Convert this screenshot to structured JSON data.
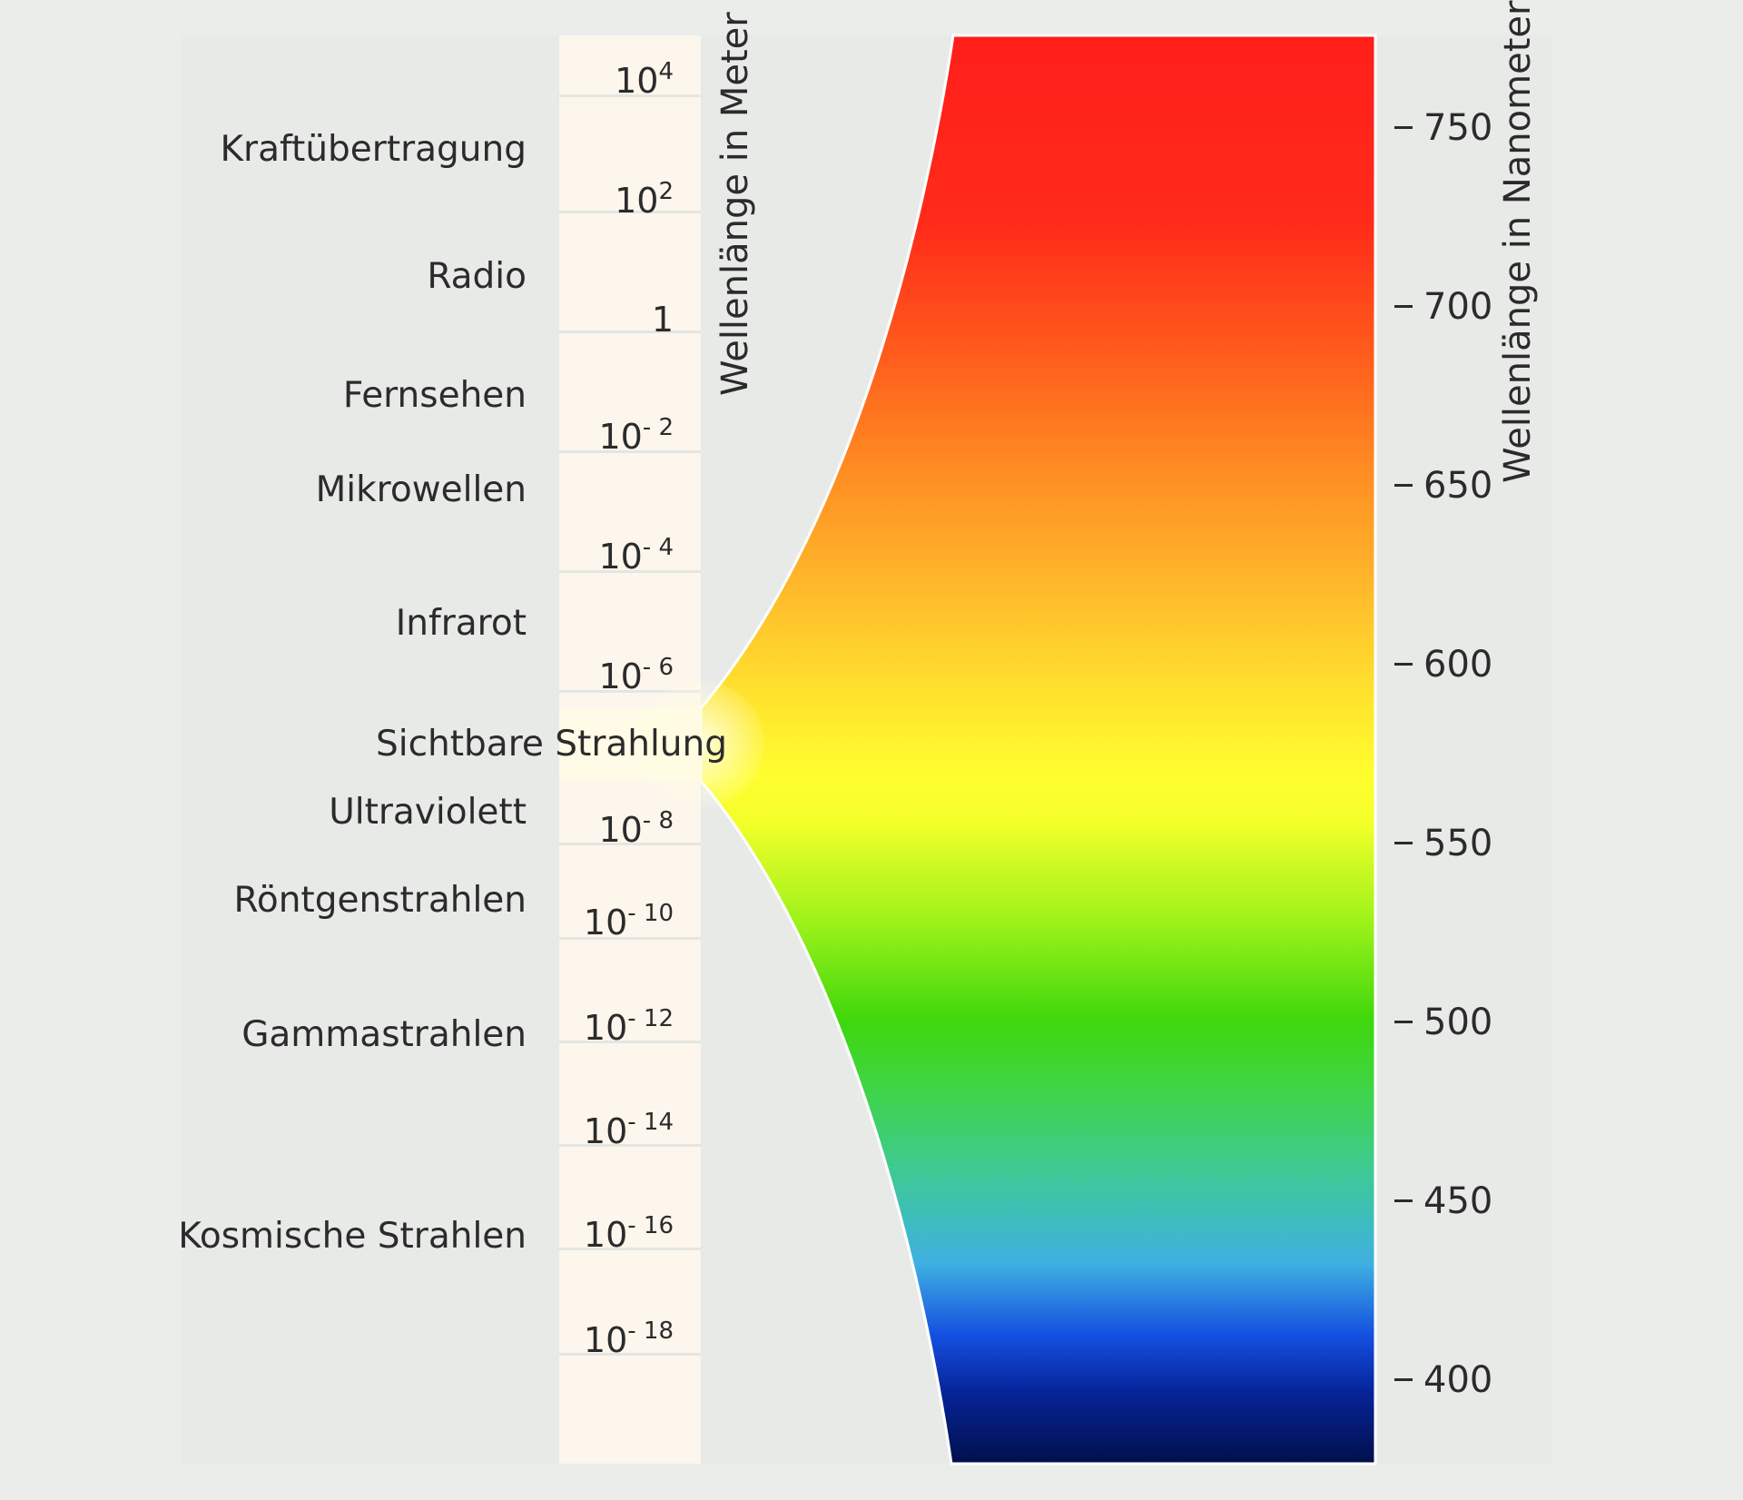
{
  "bands": [
    {
      "id": "kraftuebertragung",
      "label": "Kraftübertragung"
    },
    {
      "id": "radio",
      "label": "Radio"
    },
    {
      "id": "fernsehen",
      "label": "Fernsehen"
    },
    {
      "id": "mikrowellen",
      "label": "Mikrowellen"
    },
    {
      "id": "infrarot",
      "label": "Infrarot"
    },
    {
      "id": "sichtbare-strahlung",
      "label": "Sichtbare Strahlung"
    },
    {
      "id": "ultraviolett",
      "label": "Ultraviolett"
    },
    {
      "id": "roentgenstrahlen",
      "label": "Röntgenstrahlen"
    },
    {
      "id": "gammastrahlen",
      "label": "Gammastrahlen"
    },
    {
      "id": "kosmische-strahlen",
      "label": "Kosmische Strahlen"
    }
  ],
  "meter_scale": {
    "title": "Wellenlänge in Meter",
    "ticks": [
      {
        "base": "10",
        "exp": "4"
      },
      {
        "base": "10",
        "exp": "2"
      },
      {
        "base": "1",
        "exp": ""
      },
      {
        "base": "10",
        "exp": "- 2"
      },
      {
        "base": "10",
        "exp": "- 4"
      },
      {
        "base": "10",
        "exp": "- 6"
      },
      {
        "base": "10",
        "exp": "- 8"
      },
      {
        "base": "10",
        "exp": "- 10"
      },
      {
        "base": "10",
        "exp": "- 12"
      },
      {
        "base": "10",
        "exp": "- 14"
      },
      {
        "base": "10",
        "exp": "- 16"
      },
      {
        "base": "10",
        "exp": "- 18"
      }
    ]
  },
  "nanometer_scale": {
    "title": "Wellenlänge in Nanometer",
    "ticks": [
      "750",
      "700",
      "650",
      "600",
      "550",
      "500",
      "450",
      "400"
    ]
  },
  "colors": {
    "background": "#ebedeb",
    "scale_column": "#fcf6ec",
    "spectrum_top": "#ff2019",
    "spectrum_bottom": "#020f4a"
  }
}
